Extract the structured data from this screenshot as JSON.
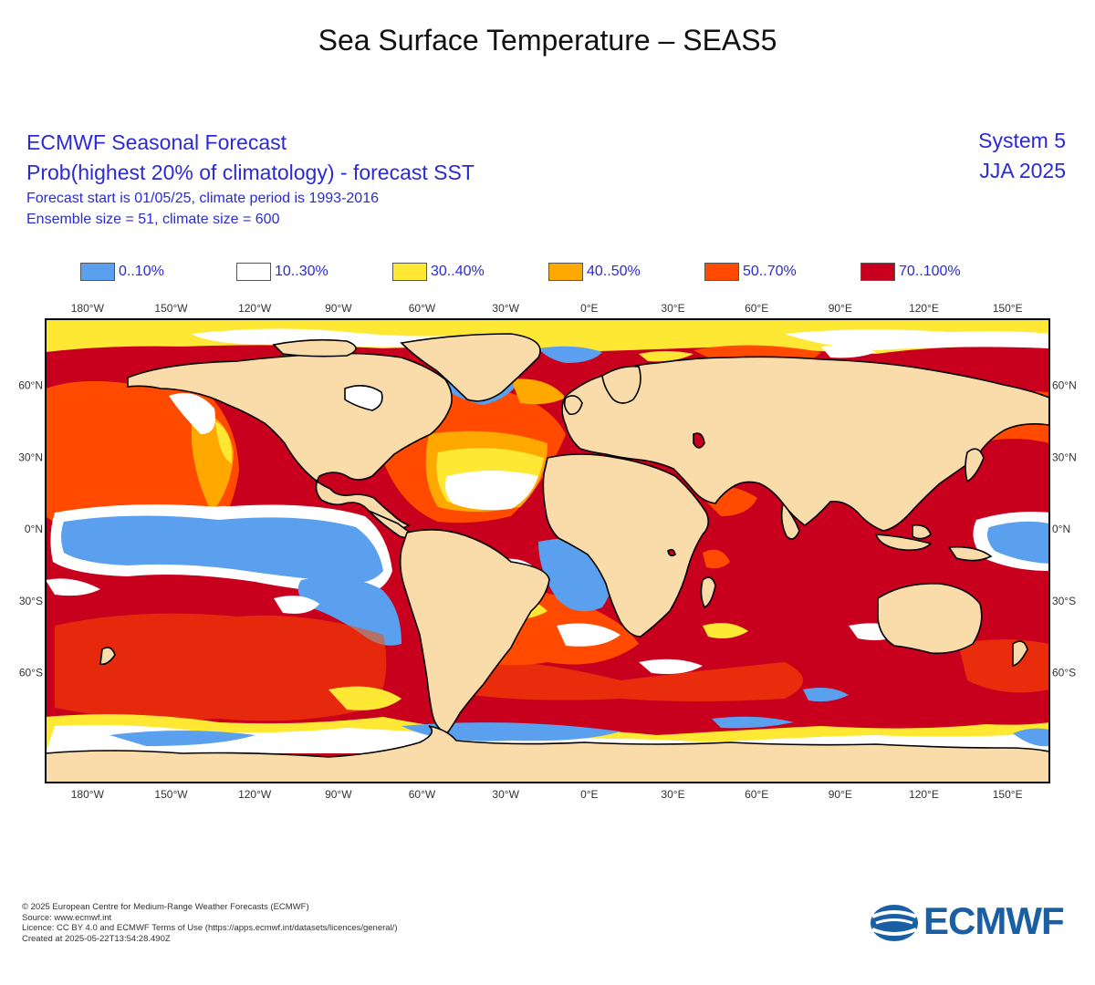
{
  "page_title": "Sea Surface Temperature – SEAS5",
  "header": {
    "line1": "ECMWF Seasonal Forecast",
    "line2": "Prob(highest 20% of climatology) - forecast SST",
    "line3": "Forecast start is 01/05/25, climate period is 1993-2016",
    "line4": "Ensemble size = 51, climate size = 600",
    "system": "System 5",
    "season": "JJA 2025"
  },
  "legend": [
    {
      "label": "0..10%",
      "color": "#5aa0ee"
    },
    {
      "label": "10..30%",
      "color": "#ffffff"
    },
    {
      "label": "30..40%",
      "color": "#ffe833"
    },
    {
      "label": "40..50%",
      "color": "#ffa800"
    },
    {
      "label": "50..70%",
      "color": "#ff4a00"
    },
    {
      "label": "70..100%",
      "color": "#c8001e"
    }
  ],
  "map": {
    "projection": "equirectangular",
    "lon_ticks": [
      "180°W",
      "150°W",
      "120°W",
      "90°W",
      "60°W",
      "30°W",
      "0°E",
      "30°E",
      "60°E",
      "90°E",
      "120°E",
      "150°E"
    ],
    "lat_ticks": [
      "60°N",
      "30°N",
      "0°N",
      "30°S",
      "60°S"
    ],
    "land_color": "#fadbaa"
  },
  "footer": {
    "line1": "© 2025 European Centre for Medium-Range Weather Forecasts (ECMWF)",
    "line2": "Source: www.ecmwf.int",
    "line3": "Licence: CC BY 4.0 and ECMWF Terms of Use (https://apps.ecmwf.int/datasets/licences/general/)",
    "line4": "Created at 2025-05-22T13:54:28.490Z"
  },
  "brand": {
    "name": "ECMWF",
    "color": "#1a5fa3"
  }
}
